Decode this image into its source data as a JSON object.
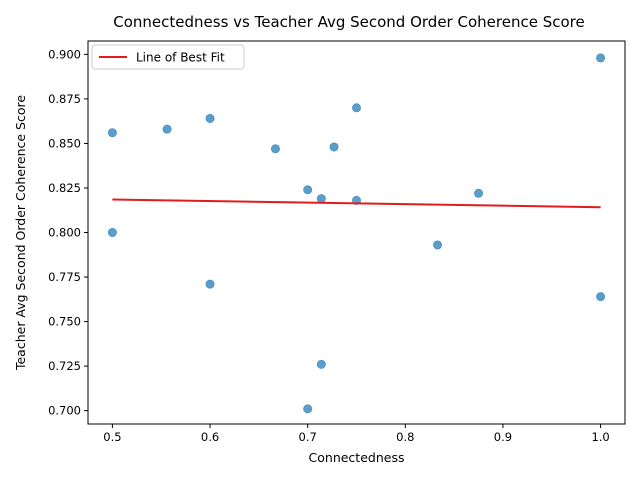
{
  "colors": {
    "point": "#1f77b4",
    "fit_line": "#e41a1c",
    "axes": "#000000",
    "background": "#ffffff"
  },
  "chart_data": {
    "type": "scatter",
    "title": "Connectedness vs Teacher Avg Second Order Coherence Score",
    "xlabel": "Connectedness",
    "ylabel": "Teacher Avg Second Order Coherence Score",
    "xlim": [
      0.475,
      1.025
    ],
    "ylim": [
      0.6925,
      0.9075
    ],
    "x_ticks": [
      0.5,
      0.6,
      0.7,
      0.8,
      0.9,
      1.0
    ],
    "x_tick_labels": [
      "0.5",
      "0.6",
      "0.7",
      "0.8",
      "0.9",
      "1.0"
    ],
    "y_ticks": [
      0.7,
      0.725,
      0.75,
      0.775,
      0.8,
      0.825,
      0.85,
      0.875,
      0.9
    ],
    "y_tick_labels": [
      "0.700",
      "0.725",
      "0.750",
      "0.775",
      "0.800",
      "0.825",
      "0.850",
      "0.875",
      "0.900"
    ],
    "grid": false,
    "legend": {
      "position": "top-left",
      "entries": [
        "Line of Best Fit"
      ]
    },
    "points": [
      {
        "x": 0.5,
        "y": 0.856
      },
      {
        "x": 0.5,
        "y": 0.8
      },
      {
        "x": 0.556,
        "y": 0.858
      },
      {
        "x": 0.6,
        "y": 0.864
      },
      {
        "x": 0.6,
        "y": 0.771
      },
      {
        "x": 0.667,
        "y": 0.847
      },
      {
        "x": 0.7,
        "y": 0.824
      },
      {
        "x": 0.7,
        "y": 0.701
      },
      {
        "x": 0.714,
        "y": 0.819
      },
      {
        "x": 0.714,
        "y": 0.726
      },
      {
        "x": 0.727,
        "y": 0.848
      },
      {
        "x": 0.75,
        "y": 0.87
      },
      {
        "x": 0.75,
        "y": 0.818
      },
      {
        "x": 0.833,
        "y": 0.793
      },
      {
        "x": 0.875,
        "y": 0.822
      },
      {
        "x": 1.0,
        "y": 0.898
      },
      {
        "x": 1.0,
        "y": 0.764
      }
    ],
    "fit_line": {
      "name": "Line of Best Fit",
      "x": [
        0.5,
        1.0
      ],
      "y": [
        0.8185,
        0.8142
      ]
    }
  }
}
